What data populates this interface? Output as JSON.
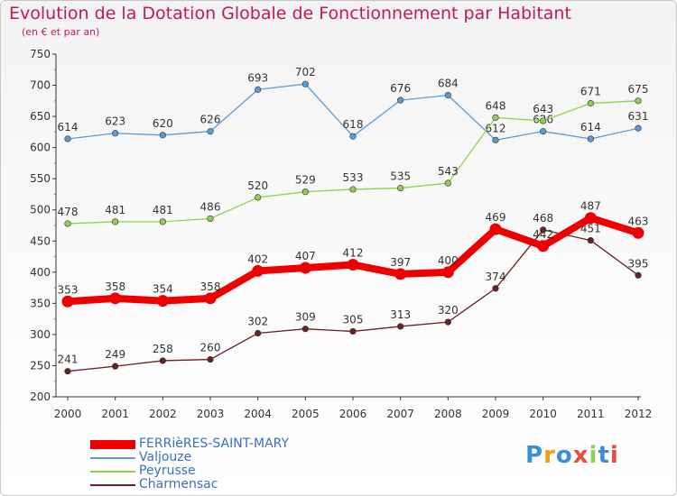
{
  "chart_data": {
    "type": "line",
    "title": "Evolution de la Dotation Globale de Fonctionnement par Habitant",
    "subtitle": "(en € et par an)",
    "x": [
      "2000",
      "2001",
      "2002",
      "2003",
      "2004",
      "2005",
      "2006",
      "2007",
      "2008",
      "2009",
      "2010",
      "2011",
      "2012"
    ],
    "ylim": [
      200,
      750
    ],
    "yticks": [
      200,
      250,
      300,
      350,
      400,
      450,
      500,
      550,
      600,
      650,
      700,
      750
    ],
    "grid": false,
    "legend_position": "bottom-left",
    "series": [
      {
        "name": "FERRièRES-SAINT-MARY",
        "color": "#ee0000",
        "emphasis": true,
        "values": [
          353,
          358,
          354,
          358,
          402,
          407,
          412,
          397,
          400,
          469,
          442,
          487,
          463
        ]
      },
      {
        "name": "Valjouze",
        "color": "#5b9bd5",
        "values": [
          614,
          623,
          620,
          626,
          693,
          702,
          618,
          676,
          684,
          612,
          626,
          614,
          631
        ]
      },
      {
        "name": "Peyrusse",
        "color": "#8fd14f",
        "values": [
          478,
          481,
          481,
          486,
          520,
          529,
          533,
          535,
          543,
          648,
          643,
          671,
          675
        ]
      },
      {
        "name": "Charmensac",
        "color": "#6b1f1f",
        "values": [
          241,
          249,
          258,
          260,
          302,
          309,
          305,
          313,
          320,
          374,
          468,
          451,
          395
        ]
      }
    ]
  },
  "logo": {
    "text": "Proxiti",
    "letters": [
      "P",
      "r",
      "o",
      "x",
      "i",
      "t",
      "i"
    ],
    "colors": [
      "#3a8fd6",
      "#f39c12",
      "#3a8fd6",
      "#e84c3d",
      "#8fd14f",
      "#3a8fd6",
      "#e84c3d"
    ]
  }
}
